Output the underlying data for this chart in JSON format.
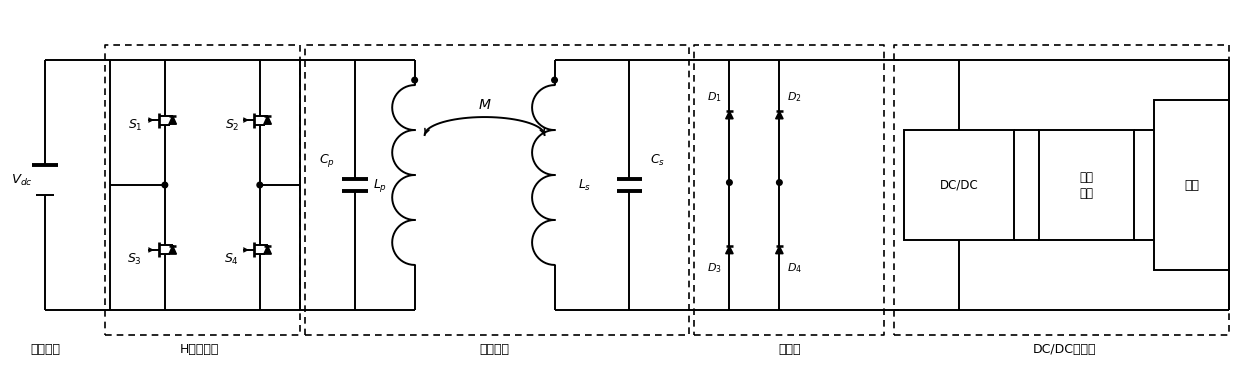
{
  "fig_width": 12.39,
  "fig_height": 3.7,
  "dpi": 100,
  "bg_color": "#ffffff",
  "line_color": "#000000",
  "labels": {
    "Vdc": "$V_{dc}$",
    "S1": "$S_1$",
    "S2": "$S_2$",
    "S3": "$S_3$",
    "S4": "$S_4$",
    "Cp": "$C_p$",
    "Cs": "$C_s$",
    "Lp": "$L_p$",
    "Ls": "$L_s$",
    "M": "$M$",
    "D1": "$D_1$",
    "D2": "$D_2$",
    "D3": "$D_3$",
    "D4": "$D_4$",
    "DCDC": "DC/DC",
    "storage": "储能\n单元",
    "load": "负载",
    "bottom_dc": "直流电源",
    "bottom_hbridge": "H桥逆变器",
    "bottom_coil": "送能线圈",
    "bottom_rect": "整流桥",
    "bottom_dcdc": "DC/DC变换器"
  }
}
